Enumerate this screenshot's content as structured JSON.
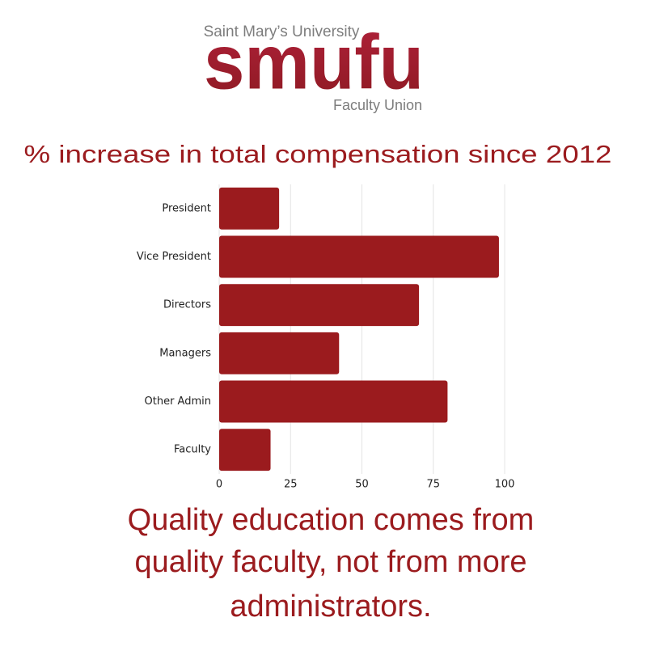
{
  "logo": {
    "university": "Saint Mary’s University",
    "wordmark": "smufu",
    "union": "Faculty Union"
  },
  "chart_data": {
    "type": "bar",
    "orientation": "horizontal",
    "title": "% increase in total compensation since 2012",
    "categories": [
      "President",
      "Vice President",
      "Directors",
      "Managers",
      "Other Admin",
      "Faculty"
    ],
    "values": [
      21,
      98,
      70,
      42,
      80,
      18
    ],
    "color": "#9b1b1e",
    "xlim": [
      0,
      100
    ],
    "xticks": [
      0,
      25,
      50,
      75,
      100
    ],
    "grid": true
  },
  "tagline": [
    "Quality education comes from",
    "quality faculty, not from more",
    "administrators."
  ]
}
